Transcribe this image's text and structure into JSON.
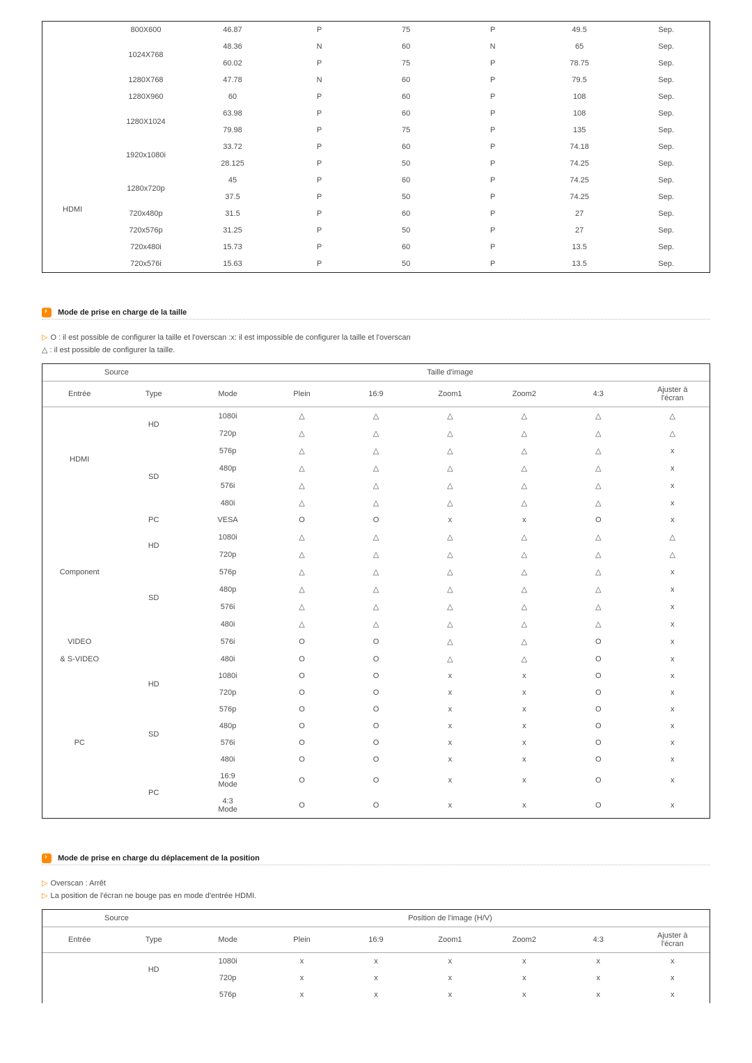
{
  "table1": {
    "port_label": "HDMI",
    "rows": [
      {
        "res": "800X600",
        "hf": "46.87",
        "p1": "P",
        "vf": "75",
        "p2": "P",
        "c": "49.5",
        "sync": "Sep."
      },
      {
        "res": "1024X768",
        "span": 2,
        "hf": "48.36",
        "p1": "N",
        "vf": "60",
        "p2": "N",
        "c": "65",
        "sync": "Sep."
      },
      {
        "res": "",
        "hf": "60.02",
        "p1": "P",
        "vf": "75",
        "p2": "P",
        "c": "78.75",
        "sync": "Sep."
      },
      {
        "res": "1280X768",
        "hf": "47.78",
        "p1": "N",
        "vf": "60",
        "p2": "P",
        "c": "79.5",
        "sync": "Sep."
      },
      {
        "res": "1280X960",
        "hf": "60",
        "p1": "P",
        "vf": "60",
        "p2": "P",
        "c": "108",
        "sync": "Sep."
      },
      {
        "res": "1280X1024",
        "span": 2,
        "hf": "63.98",
        "p1": "P",
        "vf": "60",
        "p2": "P",
        "c": "108",
        "sync": "Sep."
      },
      {
        "res": "",
        "hf": "79.98",
        "p1": "P",
        "vf": "75",
        "p2": "P",
        "c": "135",
        "sync": "Sep."
      },
      {
        "res": "1920x1080i",
        "span": 2,
        "hf": "33.72",
        "p1": "P",
        "vf": "60",
        "p2": "P",
        "c": "74.18",
        "sync": "Sep."
      },
      {
        "res": "",
        "hf": "28.125",
        "p1": "P",
        "vf": "50",
        "p2": "P",
        "c": "74.25",
        "sync": "Sep."
      },
      {
        "res": "1280x720p",
        "span": 2,
        "hf": "45",
        "p1": "P",
        "vf": "60",
        "p2": "P",
        "c": "74.25",
        "sync": "Sep."
      },
      {
        "res": "",
        "hf": "37.5",
        "p1": "P",
        "vf": "50",
        "p2": "P",
        "c": "74.25",
        "sync": "Sep."
      },
      {
        "res": "720x480p",
        "hf": "31.5",
        "p1": "P",
        "vf": "60",
        "p2": "P",
        "c": "27",
        "sync": "Sep."
      },
      {
        "res": "720x576p",
        "hf": "31.25",
        "p1": "P",
        "vf": "50",
        "p2": "P",
        "c": "27",
        "sync": "Sep."
      },
      {
        "res": "720x480i",
        "hf": "15.73",
        "p1": "P",
        "vf": "60",
        "p2": "P",
        "c": "13.5",
        "sync": "Sep."
      },
      {
        "res": "720x576i",
        "hf": "15.63",
        "p1": "P",
        "vf": "50",
        "p2": "P",
        "c": "13.5",
        "sync": "Sep."
      }
    ]
  },
  "section2": {
    "title": "Mode de prise en charge de la taille",
    "note1": "O : il est possible de configurer la taille et l'overscan :x: il est impossible de configurer la taille et l'overscan",
    "note2": "△ : il est possible de configurer la taille."
  },
  "table2": {
    "hdr_source": "Source",
    "hdr_img": "Taille d'image",
    "cols": [
      "Entrée",
      "Type",
      "Mode",
      "Plein",
      "16:9",
      "Zoom1",
      "Zoom2",
      "4:3",
      "Ajuster à l'écran"
    ],
    "rows": [
      {
        "entree": "HDMI",
        "entree_span": 6,
        "type": "HD",
        "type_span": 2,
        "mode": "1080i",
        "v": [
          "△",
          "△",
          "△",
          "△",
          "△",
          "△"
        ]
      },
      {
        "mode": "720p",
        "v": [
          "△",
          "△",
          "△",
          "△",
          "△",
          "△"
        ]
      },
      {
        "type": "SD",
        "type_span": 4,
        "mode": "576p",
        "v": [
          "△",
          "△",
          "△",
          "△",
          "△",
          "x"
        ]
      },
      {
        "mode": "480p",
        "v": [
          "△",
          "△",
          "△",
          "△",
          "△",
          "x"
        ]
      },
      {
        "mode": "576i",
        "v": [
          "△",
          "△",
          "△",
          "△",
          "△",
          "x"
        ]
      },
      {
        "mode": "480i",
        "v": [
          "△",
          "△",
          "△",
          "△",
          "△",
          "x"
        ]
      },
      {
        "entree": "Component",
        "entree_span": 7,
        "type": "PC",
        "type_span": 1,
        "mode": "VESA",
        "v": [
          "O",
          "O",
          "x",
          "x",
          "O",
          "x"
        ]
      },
      {
        "type": "HD",
        "type_span": 2,
        "mode": "1080i",
        "v": [
          "△",
          "△",
          "△",
          "△",
          "△",
          "△"
        ]
      },
      {
        "mode": "720p",
        "v": [
          "△",
          "△",
          "△",
          "△",
          "△",
          "△"
        ]
      },
      {
        "type": "SD",
        "type_span": 4,
        "mode": "576p",
        "v": [
          "△",
          "△",
          "△",
          "△",
          "△",
          "x"
        ]
      },
      {
        "mode": "480p",
        "v": [
          "△",
          "△",
          "△",
          "△",
          "△",
          "x"
        ]
      },
      {
        "mode": "576i",
        "v": [
          "△",
          "△",
          "△",
          "△",
          "△",
          "x"
        ]
      },
      {
        "mode": "480i",
        "v": [
          "△",
          "△",
          "△",
          "△",
          "△",
          "x"
        ]
      },
      {
        "entree": "VIDEO",
        "entree_span": 1,
        "type": "",
        "type_span": 2,
        "mode": "576i",
        "v": [
          "O",
          "O",
          "△",
          "△",
          "O",
          "x"
        ],
        "entree_noborder": true
      },
      {
        "entree": "& S-VIDEO",
        "entree_span": 1,
        "mode": "480i",
        "v": [
          "O",
          "O",
          "△",
          "△",
          "O",
          "x"
        ],
        "entree_noborder": true
      },
      {
        "entree": "PC",
        "entree_span": 8,
        "type": "HD",
        "type_span": 2,
        "mode": "1080i",
        "v": [
          "O",
          "O",
          "x",
          "x",
          "O",
          "x"
        ]
      },
      {
        "mode": "720p",
        "v": [
          "O",
          "O",
          "x",
          "x",
          "O",
          "x"
        ]
      },
      {
        "type": "SD",
        "type_span": 4,
        "mode": "576p",
        "v": [
          "O",
          "O",
          "x",
          "x",
          "O",
          "x"
        ]
      },
      {
        "mode": "480p",
        "v": [
          "O",
          "O",
          "x",
          "x",
          "O",
          "x"
        ]
      },
      {
        "mode": "576i",
        "v": [
          "O",
          "O",
          "x",
          "x",
          "O",
          "x"
        ]
      },
      {
        "mode": "480i",
        "v": [
          "O",
          "O",
          "x",
          "x",
          "O",
          "x"
        ]
      },
      {
        "type": "PC",
        "type_span": 2,
        "mode": "16:9 Mode",
        "v": [
          "O",
          "O",
          "x",
          "x",
          "O",
          "x"
        ]
      },
      {
        "mode": "4:3 Mode",
        "v": [
          "O",
          "O",
          "x",
          "x",
          "O",
          "x"
        ]
      }
    ]
  },
  "section3": {
    "title": "Mode de prise en charge du déplacement de la position",
    "note1": "Overscan : Arrêt",
    "note2": "La position de l'écran ne bouge pas en mode d'entrée HDMI."
  },
  "table3": {
    "hdr_source": "Source",
    "hdr_pos": "Position de l'image (H/V)",
    "cols": [
      "Entrée",
      "Type",
      "Mode",
      "Plein",
      "16:9",
      "Zoom1",
      "Zoom2",
      "4:3",
      "Ajuster à l'écran"
    ],
    "rows": [
      {
        "entree": "",
        "type": "HD",
        "type_span": 2,
        "mode": "1080i",
        "v": [
          "x",
          "x",
          "x",
          "x",
          "x",
          "x"
        ]
      },
      {
        "mode": "720p",
        "v": [
          "x",
          "x",
          "x",
          "x",
          "x",
          "x"
        ]
      },
      {
        "mode": "576p",
        "v": [
          "x",
          "x",
          "x",
          "x",
          "x",
          "x"
        ]
      }
    ]
  }
}
